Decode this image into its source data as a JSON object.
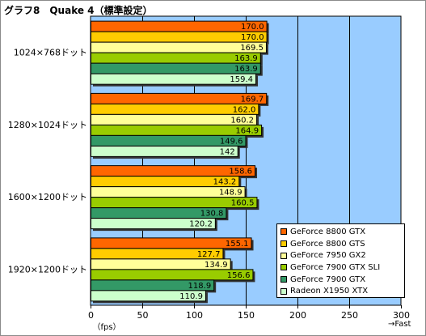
{
  "title": "グラフ8　Quake 4（標準設定）",
  "colors": {
    "plot_background": "#99CCFF",
    "bar_border": "#000000"
  },
  "chart_data": {
    "type": "bar",
    "orientation": "horizontal",
    "title": "グラフ8　Quake 4（標準設定）",
    "categories": [
      "1024×768ドット",
      "1280×1024ドット",
      "1600×1200ドット",
      "1920×1200ドット"
    ],
    "xlabel": "（fps）",
    "xlabel_right": "→Fast",
    "xlim": [
      0,
      300
    ],
    "xticks": [
      0,
      50,
      100,
      150,
      200,
      250,
      300
    ],
    "grid": true,
    "legend_position": "bottom-right",
    "series": [
      {
        "name": "GeForce 8800 GTX",
        "color": "#FF6600",
        "values": [
          170.0,
          169.7,
          158.6,
          155.1
        ],
        "labels": [
          "170.0",
          "169.7",
          "158.6",
          "155.1"
        ]
      },
      {
        "name": "GeForce 8800 GTS",
        "color": "#FFCC00",
        "values": [
          170.0,
          162.0,
          143.2,
          127.7
        ],
        "labels": [
          "170.0",
          "162.0",
          "143.2",
          "127.7"
        ]
      },
      {
        "name": "GeForce 7950 GX2",
        "color": "#FFFF99",
        "values": [
          169.5,
          160.2,
          148.9,
          134.9
        ],
        "labels": [
          "169.5",
          "160.2",
          "148.9",
          "134.9"
        ]
      },
      {
        "name": "GeForce 7900 GTX SLI",
        "color": "#99CC00",
        "values": [
          163.9,
          164.9,
          160.5,
          156.6
        ],
        "labels": [
          "163.9",
          "164.9",
          "160.5",
          "156.6"
        ]
      },
      {
        "name": "GeForce 7900 GTX",
        "color": "#339966",
        "values": [
          163.9,
          149.6,
          130.8,
          118.9
        ],
        "labels": [
          "163.9",
          "149.6",
          "130.8",
          "118.9"
        ]
      },
      {
        "name": "Radeon X1950 XTX",
        "color": "#CCFFCC",
        "values": [
          159.4,
          142,
          120.2,
          110.9
        ],
        "labels": [
          "159.4",
          "142",
          "120.2",
          "110.9"
        ]
      }
    ]
  }
}
